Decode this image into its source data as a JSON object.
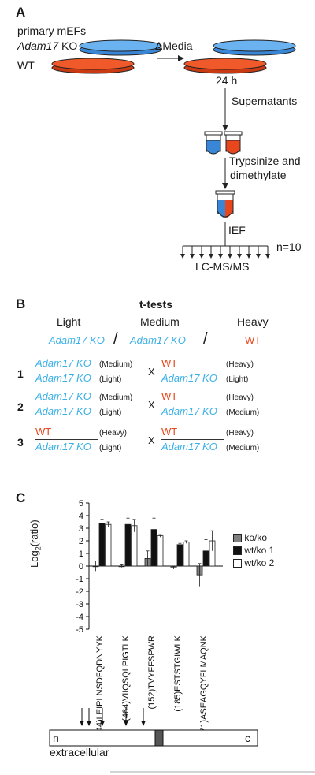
{
  "panelA": {
    "letter": "A",
    "primary_mefs": "primary mEFs",
    "ko_gene": "Adam17",
    "ko_suffix": " KO",
    "wt": "WT",
    "delta_media": "ΔMedia",
    "time": "24 h",
    "supernatants": "Supernatants",
    "trypsinize_1": "Trypsinize and",
    "trypsinize_2": "dimethylate",
    "ief": "IEF",
    "n": "n=10",
    "lcms": "LC-MS/MS",
    "colors": {
      "ko": "#3a86d6",
      "wt": "#e8471d"
    }
  },
  "panelB": {
    "letter": "B",
    "title": "t-tests",
    "header": {
      "light": "Light",
      "medium": "Medium",
      "heavy": "Heavy"
    },
    "header_labels": {
      "ko1": "Adam17 KO",
      "ko2": "Adam17 KO",
      "wt": "WT"
    },
    "slash": "/",
    "x": "X",
    "rows": [
      {
        "num": "1",
        "left": {
          "num": "Adam17 KO",
          "num_tag": "(Medium)",
          "den": "Adam17 KO",
          "den_tag": "(Light)",
          "num_color": "blue"
        },
        "right": {
          "num": "WT",
          "num_tag": "(Heavy)",
          "den": "Adam17 KO",
          "den_tag": "(Light)"
        }
      },
      {
        "num": "2",
        "left": {
          "num": "Adam17 KO",
          "num_tag": "(Medium)",
          "den": "Adam17 KO",
          "den_tag": "(Light)",
          "num_color": "blue"
        },
        "right": {
          "num": "WT",
          "num_tag": "(Heavy)",
          "den": "Adam17 KO",
          "den_tag": "(Medium)"
        }
      },
      {
        "num": "3",
        "left": {
          "num": "WT",
          "num_tag": "(Heavy)",
          "den": "Adam17 KO",
          "den_tag": "(Light)",
          "num_color": "red"
        },
        "right": {
          "num": "WT",
          "num_tag": "(Heavy)",
          "den": "Adam17 KO",
          "den_tag": "(Medium)"
        }
      }
    ]
  },
  "panelC": {
    "letter": "C",
    "ylabel": "Log2(ratio)",
    "ylabel_main": "Log",
    "ylabel_sub": "2",
    "ylabel_rest": "(ratio)",
    "bottom_labels": {
      "n": "n",
      "c": "c",
      "extracellular": "extracellular"
    }
  },
  "chart_data": {
    "type": "bar",
    "categories": [
      "(244)LEIPLNSDFQDNYYK",
      "(464)VIIQSQLPIGTLK",
      "(152)TVYFFSPWR",
      "(185)ESTSTGIWLK",
      "(371)ASEAGQYFLMAQNK"
    ],
    "series": [
      {
        "name": "ko/ko",
        "color": "#808080",
        "values": [
          0.0,
          0.0,
          0.6,
          -0.15,
          -0.7
        ],
        "errors": [
          0.4,
          0.1,
          0.6,
          0.1,
          0.9
        ]
      },
      {
        "name": "wt/ko 1",
        "color": "#111111",
        "values": [
          3.4,
          3.3,
          2.9,
          1.7,
          1.2
        ],
        "errors": [
          0.3,
          0.5,
          0.9,
          0.1,
          0.9
        ]
      },
      {
        "name": "wt/ko 2",
        "color": "#ffffff",
        "values": [
          3.3,
          3.2,
          2.4,
          1.9,
          2.0
        ],
        "errors": [
          0.2,
          0.5,
          0.1,
          0.1,
          0.8
        ]
      }
    ],
    "yticks": [
      "5",
      "4",
      "3",
      "2",
      "1",
      "0",
      "-1",
      "-2",
      "-3",
      "-4",
      "-5"
    ],
    "ylim": [
      -5,
      5
    ],
    "ylabel": "Log2(ratio)",
    "legend": "right"
  }
}
